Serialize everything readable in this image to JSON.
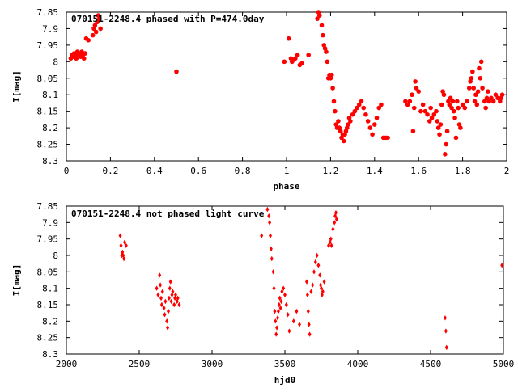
{
  "colors": {
    "points": "#ff0000",
    "frame": "#000000",
    "background": "#ffffff"
  },
  "chart_data": [
    {
      "type": "scatter",
      "title": "070151-2248.4 phased with P=474.0day",
      "xlabel": "phase",
      "ylabel": "I[mag]",
      "xlim": [
        0,
        2
      ],
      "ylim": [
        7.85,
        8.3
      ],
      "y_inverted": true,
      "grid": false,
      "marker": "filled-circle",
      "x_ticks": [
        0,
        0.2,
        0.4,
        0.6,
        0.8,
        1,
        1.2,
        1.4,
        1.6,
        1.8,
        2
      ],
      "x_tick_labels": [
        "0",
        "0.2",
        "0.4",
        "0.6",
        "0.8",
        "1",
        "1.2",
        "1.4",
        "1.6",
        "1.8",
        "2"
      ],
      "y_ticks": [
        7.85,
        7.9,
        7.95,
        8,
        8.05,
        8.1,
        8.15,
        8.2,
        8.25,
        8.3
      ],
      "y_tick_labels": [
        "7.85",
        "7.9",
        "7.95",
        "8",
        "8.05",
        "8.1",
        "8.15",
        "8.2",
        "8.25",
        "8.3"
      ],
      "points": [
        [
          0.02,
          7.99
        ],
        [
          0.025,
          7.98
        ],
        [
          0.03,
          7.985
        ],
        [
          0.035,
          7.975
        ],
        [
          0.04,
          7.98
        ],
        [
          0.045,
          7.99
        ],
        [
          0.05,
          7.97
        ],
        [
          0.055,
          7.98
        ],
        [
          0.06,
          7.975
        ],
        [
          0.065,
          7.985
        ],
        [
          0.07,
          7.97
        ],
        [
          0.075,
          7.98
        ],
        [
          0.08,
          7.99
        ],
        [
          0.085,
          7.975
        ],
        [
          0.09,
          7.93
        ],
        [
          0.1,
          7.935
        ],
        [
          0.12,
          7.92
        ],
        [
          0.125,
          7.9
        ],
        [
          0.13,
          7.89
        ],
        [
          0.135,
          7.91
        ],
        [
          0.14,
          7.88
        ],
        [
          0.145,
          7.86
        ],
        [
          0.15,
          7.87
        ],
        [
          0.155,
          7.9
        ],
        [
          0.5,
          8.03
        ],
        [
          0.99,
          8.0
        ],
        [
          1.02,
          7.99
        ],
        [
          1.025,
          8.0
        ],
        [
          1.03,
          7.995
        ],
        [
          1.04,
          7.99
        ],
        [
          1.05,
          7.98
        ],
        [
          1.06,
          8.01
        ],
        [
          1.07,
          8.005
        ],
        [
          1.01,
          7.93
        ],
        [
          1.1,
          7.98
        ],
        [
          1.14,
          7.87
        ],
        [
          1.145,
          7.85
        ],
        [
          1.15,
          7.86
        ],
        [
          1.16,
          7.89
        ],
        [
          1.165,
          7.92
        ],
        [
          1.17,
          7.95
        ],
        [
          1.175,
          7.96
        ],
        [
          1.18,
          7.97
        ],
        [
          1.185,
          8.0
        ],
        [
          1.19,
          8.05
        ],
        [
          1.195,
          8.04
        ],
        [
          1.2,
          8.05
        ],
        [
          1.205,
          8.04
        ],
        [
          1.21,
          8.08
        ],
        [
          1.215,
          8.12
        ],
        [
          1.22,
          8.15
        ],
        [
          1.225,
          8.19
        ],
        [
          1.23,
          8.2
        ],
        [
          1.235,
          8.18
        ],
        [
          1.24,
          8.2
        ],
        [
          1.245,
          8.21
        ],
        [
          1.25,
          8.23
        ],
        [
          1.255,
          8.22
        ],
        [
          1.26,
          8.24
        ],
        [
          1.265,
          8.22
        ],
        [
          1.27,
          8.21
        ],
        [
          1.275,
          8.2
        ],
        [
          1.28,
          8.19
        ],
        [
          1.285,
          8.17
        ],
        [
          1.29,
          8.18
        ],
        [
          1.3,
          8.16
        ],
        [
          1.31,
          8.15
        ],
        [
          1.32,
          8.14
        ],
        [
          1.33,
          8.13
        ],
        [
          1.34,
          8.12
        ],
        [
          1.35,
          8.14
        ],
        [
          1.36,
          8.16
        ],
        [
          1.37,
          8.18
        ],
        [
          1.38,
          8.2
        ],
        [
          1.39,
          8.22
        ],
        [
          1.4,
          8.19
        ],
        [
          1.41,
          8.17
        ],
        [
          1.42,
          8.14
        ],
        [
          1.43,
          8.13
        ],
        [
          1.44,
          8.23
        ],
        [
          1.45,
          8.23
        ],
        [
          1.46,
          8.23
        ],
        [
          1.54,
          8.12
        ],
        [
          1.55,
          8.13
        ],
        [
          1.56,
          8.12
        ],
        [
          1.57,
          8.1
        ],
        [
          1.575,
          8.21
        ],
        [
          1.58,
          8.14
        ],
        [
          1.585,
          8.06
        ],
        [
          1.59,
          8.08
        ],
        [
          1.6,
          8.09
        ],
        [
          1.61,
          8.15
        ],
        [
          1.62,
          8.13
        ],
        [
          1.63,
          8.15
        ],
        [
          1.64,
          8.16
        ],
        [
          1.65,
          8.18
        ],
        [
          1.655,
          8.14
        ],
        [
          1.66,
          8.17
        ],
        [
          1.67,
          8.16
        ],
        [
          1.68,
          8.15
        ],
        [
          1.685,
          8.18
        ],
        [
          1.69,
          8.2
        ],
        [
          1.695,
          8.22
        ],
        [
          1.7,
          8.19
        ],
        [
          1.705,
          8.13
        ],
        [
          1.71,
          8.09
        ],
        [
          1.715,
          8.1
        ],
        [
          1.72,
          8.28
        ],
        [
          1.725,
          8.25
        ],
        [
          1.73,
          8.21
        ],
        [
          1.735,
          8.12
        ],
        [
          1.74,
          8.13
        ],
        [
          1.745,
          8.11
        ],
        [
          1.75,
          8.14
        ],
        [
          1.755,
          8.12
        ],
        [
          1.76,
          8.15
        ],
        [
          1.765,
          8.17
        ],
        [
          1.77,
          8.23
        ],
        [
          1.775,
          8.12
        ],
        [
          1.78,
          8.14
        ],
        [
          1.785,
          8.19
        ],
        [
          1.79,
          8.2
        ],
        [
          1.8,
          8.13
        ],
        [
          1.81,
          8.14
        ],
        [
          1.82,
          8.12
        ],
        [
          1.83,
          8.08
        ],
        [
          1.835,
          8.06
        ],
        [
          1.84,
          8.05
        ],
        [
          1.845,
          8.03
        ],
        [
          1.85,
          8.08
        ],
        [
          1.855,
          8.12
        ],
        [
          1.86,
          8.1
        ],
        [
          1.865,
          8.13
        ],
        [
          1.87,
          8.09
        ],
        [
          1.875,
          8.02
        ],
        [
          1.88,
          8.05
        ],
        [
          1.885,
          8.0
        ],
        [
          1.89,
          8.08
        ],
        [
          1.9,
          8.12
        ],
        [
          1.905,
          8.14
        ],
        [
          1.91,
          8.11
        ],
        [
          1.915,
          8.09
        ],
        [
          1.92,
          8.12
        ],
        [
          1.93,
          8.11
        ],
        [
          1.94,
          8.12
        ],
        [
          1.95,
          8.1
        ],
        [
          1.96,
          8.11
        ],
        [
          1.97,
          8.12
        ],
        [
          1.975,
          8.11
        ],
        [
          1.98,
          8.1
        ]
      ]
    },
    {
      "type": "scatter",
      "title": "070151-2248.4 not phased light curve",
      "xlabel": "hjd0",
      "ylabel": "I[mag]",
      "xlim": [
        2000,
        5000
      ],
      "ylim": [
        7.85,
        8.3
      ],
      "y_inverted": true,
      "grid": false,
      "marker": "filled-diamond",
      "x_ticks": [
        2000,
        2500,
        3000,
        3500,
        4000,
        4500,
        5000
      ],
      "x_tick_labels": [
        "2000",
        "2500",
        "3000",
        "3500",
        "4000",
        "4500",
        "5000"
      ],
      "y_ticks": [
        7.85,
        7.9,
        7.95,
        8,
        8.05,
        8.1,
        8.15,
        8.2,
        8.25,
        8.3
      ],
      "y_tick_labels": [
        "7.85",
        "7.9",
        "7.95",
        "8",
        "8.05",
        "8.1",
        "8.15",
        "8.2",
        "8.25",
        "8.3"
      ],
      "points": [
        [
          2370,
          7.94
        ],
        [
          2375,
          7.97
        ],
        [
          2380,
          8.0
        ],
        [
          2385,
          7.99
        ],
        [
          2390,
          8.0
        ],
        [
          2395,
          8.01
        ],
        [
          2400,
          7.96
        ],
        [
          2410,
          7.97
        ],
        [
          2620,
          8.1
        ],
        [
          2630,
          8.12
        ],
        [
          2640,
          8.06
        ],
        [
          2645,
          8.09
        ],
        [
          2650,
          8.13
        ],
        [
          2655,
          8.15
        ],
        [
          2660,
          8.11
        ],
        [
          2670,
          8.16
        ],
        [
          2675,
          8.18
        ],
        [
          2680,
          8.14
        ],
        [
          2690,
          8.2
        ],
        [
          2695,
          8.22
        ],
        [
          2700,
          8.17
        ],
        [
          2705,
          8.13
        ],
        [
          2710,
          8.1
        ],
        [
          2715,
          8.08
        ],
        [
          2720,
          8.14
        ],
        [
          2725,
          8.12
        ],
        [
          2730,
          8.11
        ],
        [
          2740,
          8.15
        ],
        [
          2745,
          8.13
        ],
        [
          2750,
          8.12
        ],
        [
          2760,
          8.14
        ],
        [
          2765,
          8.13
        ],
        [
          2775,
          8.15
        ],
        [
          3340,
          7.94
        ],
        [
          3380,
          7.86
        ],
        [
          3390,
          7.88
        ],
        [
          3395,
          7.9
        ],
        [
          3400,
          7.94
        ],
        [
          3405,
          7.98
        ],
        [
          3410,
          8.01
        ],
        [
          3420,
          8.05
        ],
        [
          3425,
          8.1
        ],
        [
          3430,
          8.17
        ],
        [
          3435,
          8.2
        ],
        [
          3440,
          8.24
        ],
        [
          3445,
          8.22
        ],
        [
          3450,
          8.19
        ],
        [
          3455,
          8.17
        ],
        [
          3460,
          8.15
        ],
        [
          3465,
          8.13
        ],
        [
          3470,
          8.16
        ],
        [
          3475,
          8.14
        ],
        [
          3480,
          8.11
        ],
        [
          3490,
          8.1
        ],
        [
          3500,
          8.12
        ],
        [
          3510,
          8.15
        ],
        [
          3520,
          8.18
        ],
        [
          3530,
          8.23
        ],
        [
          3560,
          8.2
        ],
        [
          3580,
          8.17
        ],
        [
          3600,
          8.21
        ],
        [
          3650,
          8.08
        ],
        [
          3655,
          8.12
        ],
        [
          3660,
          8.17
        ],
        [
          3665,
          8.21
        ],
        [
          3670,
          8.24
        ],
        [
          3680,
          8.11
        ],
        [
          3690,
          8.09
        ],
        [
          3700,
          8.05
        ],
        [
          3710,
          8.02
        ],
        [
          3720,
          8.0
        ],
        [
          3730,
          8.03
        ],
        [
          3740,
          8.06
        ],
        [
          3745,
          8.09
        ],
        [
          3750,
          8.1
        ],
        [
          3755,
          8.12
        ],
        [
          3760,
          8.11
        ],
        [
          3770,
          8.08
        ],
        [
          3800,
          7.97
        ],
        [
          3810,
          7.96
        ],
        [
          3815,
          7.95
        ],
        [
          3820,
          7.97
        ],
        [
          3830,
          7.92
        ],
        [
          3840,
          7.9
        ],
        [
          3845,
          7.88
        ],
        [
          3850,
          7.87
        ],
        [
          3855,
          7.89
        ],
        [
          4600,
          8.19
        ],
        [
          4605,
          8.23
        ],
        [
          4610,
          8.28
        ],
        [
          4990,
          8.03
        ]
      ]
    }
  ]
}
